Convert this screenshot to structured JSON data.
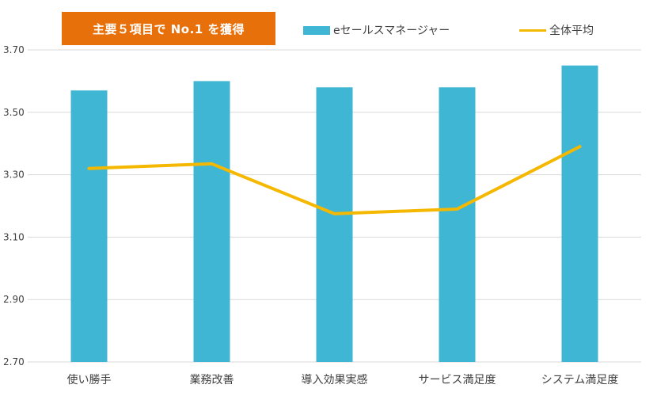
{
  "badge": {
    "label": "主要５項目で No.1 を獲得"
  },
  "colors": {
    "bar": "#3fb6d3",
    "line": "#f5b800",
    "badge": "#e8700a",
    "grid": "#d9d9d9",
    "text": "#404040"
  },
  "chart_data": {
    "type": "bar",
    "categories": [
      "使い勝手",
      "業務改善",
      "導入効果実感",
      "サービス満足度",
      "システム満足度"
    ],
    "series": [
      {
        "name": "eセールスマネージャー",
        "type": "bar",
        "values": [
          3.57,
          3.6,
          3.58,
          3.58,
          3.65
        ]
      },
      {
        "name": "全体平均",
        "type": "line",
        "values": [
          3.32,
          3.335,
          3.175,
          3.19,
          3.39
        ]
      }
    ],
    "yticks": [
      "3.70",
      "3.50",
      "3.30",
      "3.10",
      "2.90",
      "2.70"
    ],
    "ylim": [
      2.7,
      3.7
    ],
    "grid": true,
    "legend": "top"
  }
}
